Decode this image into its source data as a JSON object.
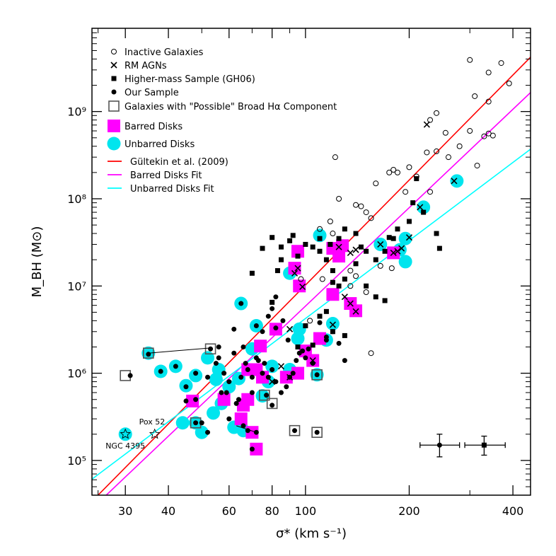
{
  "chart_data": {
    "type": "scatter",
    "xlabel": "σ* (km s⁻¹)",
    "ylabel": "M_BH (M⊙)",
    "xscale": "log",
    "yscale": "log",
    "xlim": [
      24,
      450
    ],
    "ylim": [
      40000,
      9000000000
    ],
    "xticks": [
      30,
      40,
      60,
      80,
      100,
      200,
      400
    ],
    "yticks_labels": [
      "10⁵",
      "10⁶",
      "10⁷",
      "10⁸",
      "10⁹"
    ],
    "yticks": [
      100000,
      1000000,
      10000000,
      100000000,
      1000000000
    ],
    "legend": {
      "placement": "top-left",
      "items": [
        "Inactive Galaxies",
        "RM AGNs",
        "Higher-mass Sample (GH06)",
        "Our Sample",
        "Galaxies with \"Possible\" Broad Hα Component",
        "Barred Disks",
        "Unbarred Disks",
        "Gültekin et al. (2009)",
        "Barred Disks Fit",
        "Unbarred Disks Fit"
      ]
    },
    "lines": [
      {
        "name": "Gültekin et al. (2009)",
        "color": "#ff0000",
        "x": [
          24,
          450
        ],
        "y": [
          34000,
          4200000000
        ]
      },
      {
        "name": "Barred Disks Fit",
        "color": "#ff00ff",
        "x": [
          24,
          450
        ],
        "y": [
          28000,
          1650000000
        ]
      },
      {
        "name": "Unbarred Disks Fit",
        "color": "#00ffff",
        "x": [
          24,
          450
        ],
        "y": [
          61000,
          370000000
        ]
      }
    ],
    "series": [
      {
        "name": "Inactive Galaxies",
        "marker": "open-circle",
        "points": [
          [
            300,
            3900000000
          ],
          [
            370,
            3600000000
          ],
          [
            340,
            2800000000
          ],
          [
            390,
            2100000000
          ],
          [
            310,
            1500000000
          ],
          [
            240,
            960000000
          ],
          [
            230,
            800000000
          ],
          [
            340,
            1300000000
          ],
          [
            255,
            570000000
          ],
          [
            300,
            600000000
          ],
          [
            340,
            560000000
          ],
          [
            350,
            530000000
          ],
          [
            330,
            520000000
          ],
          [
            280,
            400000000
          ],
          [
            260,
            300000000
          ],
          [
            240,
            350000000
          ],
          [
            225,
            340000000
          ],
          [
            315,
            240000000
          ],
          [
            180,
            215000000
          ],
          [
            175,
            200000000
          ],
          [
            185,
            200000000
          ],
          [
            200,
            230000000
          ],
          [
            210,
            180000000
          ],
          [
            195,
            120000000
          ],
          [
            230,
            120000000
          ],
          [
            160,
            150000000
          ],
          [
            140,
            85000000
          ],
          [
            145,
            82000000
          ],
          [
            150,
            70000000
          ],
          [
            155,
            60000000
          ],
          [
            125,
            100000000
          ],
          [
            122,
            300000000
          ],
          [
            118,
            55000000
          ],
          [
            135,
            15000000
          ],
          [
            140,
            13000000
          ],
          [
            150,
            8500000
          ],
          [
            135,
            10000000
          ],
          [
            112,
            12000000
          ],
          [
            110,
            45000000
          ],
          [
            120,
            40000000
          ],
          [
            165,
            17000000
          ],
          [
            178,
            16000000
          ],
          [
            155,
            1700000
          ],
          [
            97,
            12000000
          ],
          [
            103,
            4000000
          ]
        ]
      },
      {
        "name": "RM AGNs",
        "marker": "x",
        "points": [
          [
            225,
            710000000
          ],
          [
            270,
            160000000
          ],
          [
            215,
            80000000
          ],
          [
            190,
            27000000
          ],
          [
            185,
            25000000
          ],
          [
            165,
            30000000
          ],
          [
            200,
            36000000
          ],
          [
            95,
            16000000
          ],
          [
            93,
            14000000
          ],
          [
            98,
            9800000
          ],
          [
            125,
            28000000
          ],
          [
            135,
            24000000
          ],
          [
            140,
            26000000
          ],
          [
            135,
            6300000
          ],
          [
            140,
            5100000
          ],
          [
            130,
            7500000
          ],
          [
            90,
            3200000
          ],
          [
            120,
            3600000
          ],
          [
            105,
            1400000
          ],
          [
            90,
            900000
          ],
          [
            85,
            1200000
          ],
          [
            80,
            800000
          ],
          [
            180,
            24000000
          ]
        ]
      },
      {
        "name": "Higher-mass Sample (GH06)",
        "marker": "filled-square",
        "points": [
          [
            210,
            170000000
          ],
          [
            205,
            90000000
          ],
          [
            200,
            55000000
          ],
          [
            220,
            70000000
          ],
          [
            240,
            40000000
          ],
          [
            245,
            27000000
          ],
          [
            185,
            45000000
          ],
          [
            180,
            35000000
          ],
          [
            175,
            36000000
          ],
          [
            170,
            25000000
          ],
          [
            160,
            20000000
          ],
          [
            150,
            25000000
          ],
          [
            145,
            28000000
          ],
          [
            140,
            40000000
          ],
          [
            130,
            45000000
          ],
          [
            125,
            35000000
          ],
          [
            118,
            30000000
          ],
          [
            110,
            35000000
          ],
          [
            105,
            28000000
          ],
          [
            100,
            30000000
          ],
          [
            92,
            38000000
          ],
          [
            90,
            33000000
          ],
          [
            85,
            28000000
          ],
          [
            80,
            36000000
          ],
          [
            75,
            27000000
          ],
          [
            95,
            22000000
          ],
          [
            110,
            25000000
          ],
          [
            115,
            20000000
          ],
          [
            120,
            15000000
          ],
          [
            125,
            10000000
          ],
          [
            130,
            12000000
          ],
          [
            150,
            10000000
          ],
          [
            160,
            7500000
          ],
          [
            170,
            6800000
          ],
          [
            140,
            18000000
          ],
          [
            115,
            5100000
          ],
          [
            110,
            4500000
          ],
          [
            85,
            20000000
          ],
          [
            83,
            15000000
          ],
          [
            80,
            6500000
          ],
          [
            70,
            14000000
          ],
          [
            100,
            3500000
          ],
          [
            95,
            2000000
          ],
          [
            105,
            2100000
          ],
          [
            120,
            3000000
          ],
          [
            130,
            2700000
          ],
          [
            120,
            11000000
          ]
        ]
      },
      {
        "name": "Our Sample",
        "marker": "filled-circle",
        "points": [
          [
            31,
            940000
          ],
          [
            35,
            1650000
          ],
          [
            42,
            1200000
          ],
          [
            45,
            700000
          ],
          [
            48,
            500000
          ],
          [
            52,
            900000
          ],
          [
            55,
            1300000
          ],
          [
            56,
            1500000
          ],
          [
            57,
            600000
          ],
          [
            58,
            1000000
          ],
          [
            60,
            800000
          ],
          [
            62,
            1700000
          ],
          [
            65,
            900000
          ],
          [
            67,
            1300000
          ],
          [
            68,
            1100000
          ],
          [
            70,
            900000
          ],
          [
            72,
            1500000
          ],
          [
            75,
            1000000
          ],
          [
            73,
            1400000
          ],
          [
            76,
            1300000
          ],
          [
            78,
            900000
          ],
          [
            80,
            1100000
          ],
          [
            82,
            800000
          ],
          [
            85,
            600000
          ],
          [
            88,
            700000
          ],
          [
            90,
            900000
          ],
          [
            92,
            1000000
          ],
          [
            94,
            1400000
          ],
          [
            96,
            1700000
          ],
          [
            98,
            1800000
          ],
          [
            100,
            1500000
          ],
          [
            102,
            1900000
          ],
          [
            105,
            1300000
          ],
          [
            110,
            3800000
          ],
          [
            115,
            2600000
          ],
          [
            120,
            3000000
          ],
          [
            125,
            2200000
          ],
          [
            130,
            1400000
          ],
          [
            65,
            6300000
          ],
          [
            62,
            3200000
          ],
          [
            66,
            2000000
          ],
          [
            72,
            3500000
          ],
          [
            75,
            3000000
          ],
          [
            78,
            4500000
          ],
          [
            80,
            5500000
          ],
          [
            82,
            7500000
          ],
          [
            86,
            4000000
          ],
          [
            70,
            600000
          ],
          [
            64,
            500000
          ],
          [
            66,
            250000
          ],
          [
            68,
            220000
          ],
          [
            70,
            135000
          ],
          [
            72,
            210000
          ],
          [
            48,
            270000
          ],
          [
            50,
            270000
          ],
          [
            45,
            480000
          ],
          [
            52,
            210000
          ],
          [
            60,
            300000
          ],
          [
            63,
            450000
          ],
          [
            77,
            560000
          ],
          [
            80,
            430000
          ],
          [
            93,
            220000
          ],
          [
            108,
            210000
          ],
          [
            108,
            960000
          ],
          [
            115,
            2400000
          ],
          [
            82,
            3300000
          ],
          [
            89,
            2400000
          ],
          [
            53,
            1900000
          ],
          [
            48,
            1000000
          ],
          [
            38,
            1050000
          ],
          [
            56,
            2000000
          ],
          [
            59,
            600000
          ]
        ]
      },
      {
        "name": "Barred Disks",
        "marker": "magenta-square",
        "points": [
          [
            95,
            25000000
          ],
          [
            96,
            10000000
          ],
          [
            93,
            16000000
          ],
          [
            120,
            27000000
          ],
          [
            125,
            22000000
          ],
          [
            128,
            29000000
          ],
          [
            135,
            6300000
          ],
          [
            140,
            5200000
          ],
          [
            120,
            8000000
          ],
          [
            110,
            2500000
          ],
          [
            105,
            1400000
          ],
          [
            100,
            1800000
          ],
          [
            95,
            1000000
          ],
          [
            88,
            900000
          ],
          [
            82,
            3200000
          ],
          [
            74,
            2050000
          ],
          [
            72,
            1100000
          ],
          [
            75,
            900000
          ],
          [
            68,
            500000
          ],
          [
            66,
            430000
          ],
          [
            65,
            300000
          ],
          [
            70,
            210000
          ],
          [
            72,
            135000
          ],
          [
            47,
            480000
          ],
          [
            58,
            500000
          ],
          [
            180,
            24000000
          ],
          [
            68,
            1100000
          ]
        ]
      },
      {
        "name": "Unbarred Disks",
        "marker": "cyan-circle",
        "points": [
          [
            30,
            200000
          ],
          [
            35,
            1700000
          ],
          [
            38,
            1050000
          ],
          [
            42,
            1200000
          ],
          [
            44,
            270000
          ],
          [
            45,
            720000
          ],
          [
            48,
            940000
          ],
          [
            52,
            1500000
          ],
          [
            54,
            350000
          ],
          [
            55,
            850000
          ],
          [
            56,
            1100000
          ],
          [
            57,
            450000
          ],
          [
            60,
            700000
          ],
          [
            62,
            240000
          ],
          [
            64,
            870000
          ],
          [
            65,
            6300000
          ],
          [
            66,
            220000
          ],
          [
            70,
            1900000
          ],
          [
            72,
            3500000
          ],
          [
            75,
            550000
          ],
          [
            78,
            800000
          ],
          [
            80,
            1200000
          ],
          [
            90,
            1100000
          ],
          [
            95,
            2500000
          ],
          [
            108,
            960000
          ],
          [
            115,
            2400000
          ],
          [
            120,
            3700000
          ],
          [
            110,
            38000000
          ],
          [
            90,
            14000000
          ],
          [
            165,
            30000000
          ],
          [
            195,
            35000000
          ],
          [
            195,
            19000000
          ],
          [
            275,
            160000000
          ],
          [
            220,
            80000000
          ],
          [
            48,
            270000
          ],
          [
            50,
            210000
          ],
          [
            188,
            26000000
          ],
          [
            96,
            3200000
          ]
        ]
      },
      {
        "name": "Galaxies with \"Possible\" Broad Hα Component",
        "marker": "gray-open-square",
        "points": [
          [
            30,
            940000
          ],
          [
            35,
            1700000
          ],
          [
            53,
            1900000
          ],
          [
            48,
            270000
          ],
          [
            76,
            560000
          ],
          [
            80,
            450000
          ],
          [
            93,
            220000
          ],
          [
            108,
            210000
          ],
          [
            108,
            960000
          ]
        ]
      }
    ],
    "connectors": [
      [
        [
          35,
          1700000
        ],
        [
          53,
          1950000
        ]
      ],
      [
        [
          63,
          250000
        ],
        [
          72,
          210000
        ]
      ]
    ],
    "error_bars": [
      {
        "x": 245,
        "y": 150000,
        "xerr": [
          215,
          280
        ],
        "yerr": [
          110000,
          200000
        ],
        "marker": "filled-circle"
      },
      {
        "x": 330,
        "y": 150000,
        "xerr": [
          290,
          380
        ],
        "yerr": [
          115000,
          190000
        ],
        "marker": "filled-square"
      }
    ],
    "stars": [
      [
        30,
        200000
      ],
      [
        36.5,
        200000
      ]
    ],
    "annotations": [
      "Pox 52",
      "NGC 4395"
    ]
  }
}
